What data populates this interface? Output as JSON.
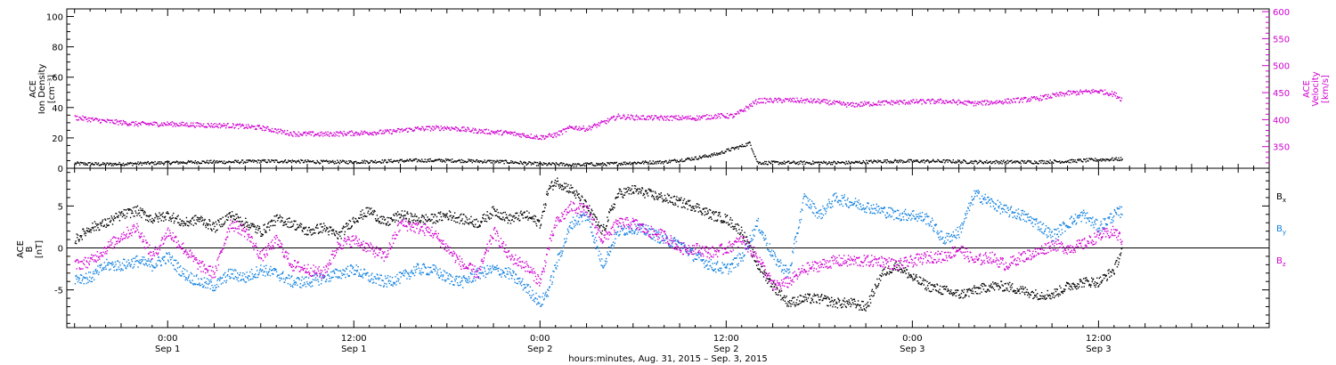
{
  "chart_data": [
    {
      "type": "scatter",
      "panel": "top",
      "ylabel_left": [
        "ACE",
        "Ion Density",
        "[cm⁻³]"
      ],
      "ylabel_right": [
        "ACE",
        "Velocity",
        "[km/s]"
      ],
      "ylim_left": [
        0,
        105
      ],
      "ylim_right": [
        310,
        605
      ],
      "left_ticks": [
        "0",
        "20",
        "40",
        "60",
        "80",
        "100"
      ],
      "right_ticks": [
        "350",
        "400",
        "450",
        "500",
        "550",
        "600"
      ],
      "series": [
        {
          "name": "Ion Density",
          "color": "#000000",
          "axis": "left",
          "t": [
            -6,
            -4,
            -2,
            0,
            2,
            4,
            6,
            8,
            10,
            12,
            14,
            16,
            18,
            20,
            22,
            24,
            25.5,
            26,
            26.5,
            27,
            28,
            30,
            32,
            34,
            35.5,
            36,
            37,
            37.5,
            38,
            40,
            42,
            44,
            46,
            48,
            50,
            52,
            54,
            56,
            58,
            60,
            61.5
          ],
          "values": [
            3.5,
            3,
            3.5,
            4,
            4.5,
            4.5,
            5,
            5,
            4.5,
            4.5,
            5,
            5.5,
            5.5,
            5,
            4.5,
            3,
            3,
            2.5,
            2.5,
            3,
            3,
            4,
            4.5,
            7,
            10,
            12,
            15,
            17,
            4,
            4,
            4,
            4,
            5,
            5,
            5,
            4.5,
            4.5,
            4.5,
            5,
            6,
            6.5
          ]
        },
        {
          "name": "Velocity",
          "color": "#d000d0",
          "axis": "right",
          "t": [
            -6,
            -4,
            -2,
            0,
            2,
            4,
            6,
            8,
            10,
            12,
            14,
            16,
            18,
            20,
            22,
            24,
            25,
            26,
            27,
            28,
            29,
            30,
            32,
            34,
            35.5,
            36.5,
            38,
            40,
            42,
            44,
            46,
            48,
            50,
            52,
            54,
            56,
            58,
            60,
            61,
            61.5
          ],
          "values": [
            405,
            398,
            393,
            393,
            391,
            390,
            386,
            375,
            374,
            376,
            378,
            384,
            386,
            380,
            376,
            368,
            373,
            387,
            384,
            395,
            407,
            405,
            404,
            404,
            408,
            408,
            436,
            437,
            435,
            428,
            432,
            434,
            435,
            431,
            435,
            440,
            450,
            454,
            448,
            438
          ]
        }
      ]
    },
    {
      "type": "scatter",
      "panel": "bottom",
      "ylabel_left": [
        "ACE",
        "B",
        "[nT]"
      ],
      "ylim": [
        -9.5,
        9.5
      ],
      "left_ticks": [
        "-5",
        "0",
        "5"
      ],
      "zero_line": true,
      "legend_position": "right",
      "series": [
        {
          "name": "B",
          "subscript": "x",
          "color": "#000000",
          "t": [
            -6,
            -5,
            -4,
            -3,
            -2,
            -1,
            0,
            1,
            2,
            3,
            4,
            5,
            6,
            7,
            8,
            9,
            10,
            11,
            12,
            13,
            14,
            15,
            16,
            17,
            18,
            19,
            20,
            21,
            22,
            23,
            24,
            24.5,
            25,
            26,
            27,
            28,
            29,
            30,
            31,
            32,
            33,
            34,
            35,
            36,
            37,
            38,
            39,
            40,
            41,
            42,
            43,
            44,
            45,
            46,
            47,
            48,
            49,
            50,
            51,
            52,
            53,
            54,
            55,
            56,
            57,
            58,
            59,
            60,
            61,
            61.5
          ],
          "values": [
            1,
            2.5,
            3,
            4,
            4.5,
            3.5,
            4,
            3,
            3.5,
            2.5,
            4,
            3,
            2,
            3.5,
            3,
            2,
            2.5,
            1.5,
            3.5,
            4.5,
            3,
            4,
            3.5,
            3.5,
            4,
            3.5,
            3,
            4.5,
            3.5,
            4,
            3,
            7,
            8,
            7,
            5,
            2,
            6.5,
            7,
            6.5,
            6,
            5.5,
            5,
            4,
            3.5,
            2,
            -2,
            -4.5,
            -6.5,
            -6,
            -6,
            -6.5,
            -6.5,
            -7,
            -3,
            -2,
            -3.5,
            -4.5,
            -5,
            -5.5,
            -5,
            -4.5,
            -4.5,
            -5,
            -5.5,
            -5.5,
            -4.5,
            -4,
            -4,
            -2.5,
            0
          ]
        },
        {
          "name": "B",
          "subscript": "y",
          "color": "#1080e0",
          "t": [
            -6,
            -5,
            -4,
            -3,
            -2,
            -1,
            0,
            1,
            2,
            3,
            4,
            5,
            6,
            7,
            8,
            9,
            10,
            11,
            12,
            13,
            14,
            15,
            16,
            17,
            18,
            19,
            20,
            21,
            22,
            23,
            24,
            24.5,
            25,
            26,
            27,
            28,
            29,
            30,
            31,
            32,
            33,
            34,
            35,
            36,
            37,
            38,
            39,
            40,
            41,
            42,
            43,
            44,
            45,
            46,
            47,
            48,
            49,
            50,
            51,
            52,
            53,
            54,
            55,
            56,
            57,
            58,
            59,
            60,
            61,
            61.5
          ],
          "values": [
            -3.5,
            -3.5,
            -2,
            -2,
            -1.5,
            -2,
            -1,
            -3,
            -4,
            -4.5,
            -3,
            -3.5,
            -2.5,
            -3,
            -4,
            -4,
            -3.5,
            -3,
            -2.5,
            -3.5,
            -4,
            -3.5,
            -2.5,
            -2.5,
            -3.5,
            -4,
            -3,
            -2.5,
            -3,
            -4.5,
            -6.5,
            -5,
            -2,
            3,
            4,
            -2,
            2,
            2.5,
            2,
            1,
            0.5,
            -1,
            -2,
            -2.5,
            -1,
            3,
            -1,
            -3,
            6,
            4,
            6,
            5.5,
            5,
            4.5,
            4,
            4,
            3.5,
            1,
            2,
            6.5,
            5.5,
            4.5,
            4,
            3,
            1.5,
            3,
            4,
            2.5,
            4,
            4.5
          ]
        },
        {
          "name": "B",
          "subscript": "z",
          "color": "#d000d0",
          "t": [
            -6,
            -5,
            -4,
            -3,
            -2,
            -1,
            0,
            1,
            2,
            3,
            4,
            5,
            6,
            7,
            8,
            9,
            10,
            11,
            12,
            13,
            14,
            15,
            16,
            17,
            18,
            19,
            20,
            21,
            22,
            23,
            24,
            24.5,
            25,
            26,
            27,
            28,
            29,
            30,
            31,
            32,
            33,
            34,
            35,
            36,
            37,
            38,
            39,
            40,
            41,
            42,
            43,
            44,
            45,
            46,
            47,
            48,
            49,
            50,
            51,
            52,
            53,
            54,
            55,
            56,
            57,
            58,
            59,
            60,
            61,
            61.5
          ],
          "values": [
            -2,
            -1.5,
            0,
            1.5,
            2.5,
            -1,
            2,
            0,
            -2,
            -3,
            3,
            2,
            -1,
            1,
            -2,
            -2.5,
            -3,
            0.5,
            1,
            0,
            -1,
            3,
            2.5,
            2,
            0,
            -2,
            -3,
            2,
            -1,
            -2,
            -4,
            0,
            3,
            5,
            4.5,
            1,
            3,
            3,
            2,
            1.5,
            0,
            0,
            -0.5,
            0,
            1,
            -1,
            -4.5,
            -4,
            -2.5,
            -2,
            -1.5,
            -1.5,
            -1.5,
            -1.5,
            -2,
            -1.5,
            -1,
            -1,
            0,
            -1.5,
            -1,
            -2,
            -1,
            -0.5,
            0.5,
            0,
            0.5,
            1.5,
            2,
            1
          ]
        }
      ]
    }
  ],
  "x_axis": {
    "xlim": [
      -6.5,
      71
    ],
    "ticks": [
      {
        "t": 0,
        "time": "0:00",
        "date": "Sep 1"
      },
      {
        "t": 12,
        "time": "12:00",
        "date": "Sep 1"
      },
      {
        "t": 24,
        "time": "0:00",
        "date": "Sep 2"
      },
      {
        "t": 36,
        "time": "12:00",
        "date": "Sep 2"
      },
      {
        "t": 48,
        "time": "0:00",
        "date": "Sep 3"
      },
      {
        "t": 60,
        "time": "12:00",
        "date": "Sep 3"
      }
    ],
    "label": "hours:minutes, Aug. 31, 2015 – Sep.  3, 2015"
  }
}
